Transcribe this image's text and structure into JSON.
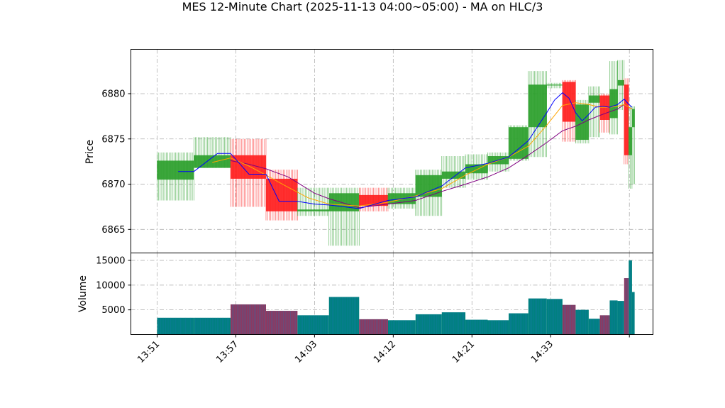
{
  "chart_data": {
    "type": "candlestick",
    "title": "MES 12-Minute Chart (2025-11-13 04:00~05:00) - MA on HLC/3",
    "price_panel": {
      "ylabel": "Price",
      "ylim": [
        6862.4,
        6884.9
      ],
      "yticks": [
        "6865",
        "6870",
        "6875",
        "6880"
      ],
      "grid": true
    },
    "volume_panel": {
      "ylabel": "Volume",
      "ylim": [
        0,
        16500
      ],
      "yticks": [
        "5000",
        "10000",
        "15000"
      ],
      "grid": true
    },
    "x_ticks": [
      {
        "label": "13:51",
        "i": 0
      },
      {
        "label": "13:57",
        "i": 6
      },
      {
        "label": "14:03",
        "i": 12
      },
      {
        "label": "14:12",
        "i": 18
      },
      {
        "label": "14:21",
        "i": 24
      },
      {
        "label": "14:33",
        "i": 30
      },
      {
        "label": "",
        "i": 36
      }
    ],
    "x_range": [
      -2,
      37.8
    ],
    "colors": {
      "up_candle": "#2ca02c",
      "down_candle": "#ff2020",
      "up_volume": "#008080",
      "down_volume": "#8b3a62",
      "ma_fast": "#0000ff",
      "ma_mid": "#ffa500",
      "ma_slow": "#800080",
      "grid": "#b0b0b0"
    },
    "candles": [
      {
        "x": 0.0,
        "w": 2.8,
        "o": 6870.5,
        "h": 6873.5,
        "l": 6868.2,
        "c": 6872.6,
        "v": 3400
      },
      {
        "x": 2.8,
        "w": 2.8,
        "o": 6871.8,
        "h": 6875.2,
        "l": 6871.8,
        "c": 6873.2,
        "v": 3400
      },
      {
        "x": 5.6,
        "w": 2.7,
        "o": 6873.2,
        "h": 6875.0,
        "l": 6867.5,
        "c": 6870.6,
        "v": 6100
      },
      {
        "x": 8.3,
        "w": 2.4,
        "o": 6870.6,
        "h": 6871.6,
        "l": 6866.0,
        "c": 6867.0,
        "v": 4800
      },
      {
        "x": 10.7,
        "w": 2.4,
        "o": 6867.0,
        "h": 6869.6,
        "l": 6866.5,
        "c": 6867.2,
        "v": 3900
      },
      {
        "x": 13.1,
        "w": 2.3,
        "o": 6867.0,
        "h": 6869.6,
        "l": 6863.2,
        "c": 6869.0,
        "v": 7600
      },
      {
        "x": 15.4,
        "w": 2.2,
        "o": 6868.8,
        "h": 6869.6,
        "l": 6867.0,
        "c": 6867.6,
        "v": 3100
      },
      {
        "x": 17.6,
        "w": 2.1,
        "o": 6867.8,
        "h": 6869.6,
        "l": 6867.3,
        "c": 6869.0,
        "v": 2900
      },
      {
        "x": 19.7,
        "w": 2.0,
        "o": 6868.6,
        "h": 6871.6,
        "l": 6866.5,
        "c": 6871.0,
        "v": 4100
      },
      {
        "x": 21.7,
        "w": 1.8,
        "o": 6870.6,
        "h": 6873.1,
        "l": 6869.6,
        "c": 6871.4,
        "v": 4500
      },
      {
        "x": 23.5,
        "w": 1.7,
        "o": 6871.2,
        "h": 6873.3,
        "l": 6870.5,
        "c": 6872.2,
        "v": 3000
      },
      {
        "x": 25.2,
        "w": 1.6,
        "o": 6872.2,
        "h": 6873.5,
        "l": 6871.4,
        "c": 6873.1,
        "v": 2900
      },
      {
        "x": 26.8,
        "w": 1.5,
        "o": 6872.8,
        "h": 6876.5,
        "l": 6872.6,
        "c": 6876.3,
        "v": 4300
      },
      {
        "x": 28.3,
        "w": 1.4,
        "o": 6876.3,
        "h": 6882.5,
        "l": 6873.0,
        "c": 6881.0,
        "v": 7300
      },
      {
        "x": 29.7,
        "w": 1.2,
        "o": 6881.0,
        "h": 6881.2,
        "l": 6880.6,
        "c": 6881.0,
        "v": 7200
      },
      {
        "x": 30.9,
        "w": 1.0,
        "o": 6881.3,
        "h": 6881.5,
        "l": 6874.7,
        "c": 6876.9,
        "v": 6000
      },
      {
        "x": 31.9,
        "w": 1.0,
        "o": 6874.9,
        "h": 6879.3,
        "l": 6874.5,
        "c": 6878.8,
        "v": 5000
      },
      {
        "x": 32.9,
        "w": 0.85,
        "o": 6879.0,
        "h": 6880.8,
        "l": 6875.2,
        "c": 6879.8,
        "v": 3200
      },
      {
        "x": 33.75,
        "w": 0.75,
        "o": 6879.8,
        "h": 6880.0,
        "l": 6875.7,
        "c": 6877.1,
        "v": 3900
      },
      {
        "x": 34.5,
        "w": 0.6,
        "o": 6877.3,
        "h": 6883.6,
        "l": 6875.5,
        "c": 6880.5,
        "v": 6900
      },
      {
        "x": 35.1,
        "w": 0.5,
        "o": 6880.9,
        "h": 6883.7,
        "l": 6878.2,
        "c": 6881.5,
        "v": 6800
      },
      {
        "x": 35.6,
        "w": 0.35,
        "o": 6881.0,
        "h": 6881.7,
        "l": 6872.2,
        "c": 6873.2,
        "v": 11400
      },
      {
        "x": 35.95,
        "w": 0.25,
        "o": 6873.2,
        "h": 6878.6,
        "l": 6869.5,
        "c": 6876.3,
        "v": 15000
      },
      {
        "x": 36.2,
        "w": 0.2,
        "o": 6876.3,
        "h": 6878.6,
        "l": 6870.0,
        "c": 6878.3,
        "v": 8600
      }
    ],
    "ma_fast": [
      [
        1.6,
        6871.4
      ],
      [
        2.8,
        6871.4
      ],
      [
        4.6,
        6873.4
      ],
      [
        5.6,
        6873.4
      ],
      [
        7.0,
        6871.1
      ],
      [
        8.3,
        6871.1
      ],
      [
        9.3,
        6868.1
      ],
      [
        10.7,
        6868.1
      ],
      [
        12.0,
        6867.8
      ],
      [
        13.1,
        6867.7
      ],
      [
        15.4,
        6867.3
      ],
      [
        17.6,
        6868.2
      ],
      [
        19.7,
        6868.6
      ],
      [
        21.7,
        6869.8
      ],
      [
        23.5,
        6871.8
      ],
      [
        25.2,
        6872.3
      ],
      [
        26.8,
        6873.0
      ],
      [
        28.3,
        6874.8
      ],
      [
        29.7,
        6877.9
      ],
      [
        30.3,
        6879.3
      ],
      [
        30.9,
        6880.1
      ],
      [
        31.4,
        6879.5
      ],
      [
        31.9,
        6877.9
      ],
      [
        32.4,
        6877.0
      ],
      [
        32.9,
        6877.7
      ],
      [
        33.4,
        6878.5
      ],
      [
        34.0,
        6878.6
      ],
      [
        34.5,
        6878.5
      ],
      [
        35.1,
        6878.8
      ],
      [
        35.6,
        6879.4
      ],
      [
        35.9,
        6878.9
      ],
      [
        36.2,
        6878.5
      ]
    ],
    "ma_mid": [
      [
        4.2,
        6872.4
      ],
      [
        5.6,
        6872.9
      ],
      [
        7.0,
        6872.0
      ],
      [
        8.3,
        6871.0
      ],
      [
        9.8,
        6869.8
      ],
      [
        11.5,
        6868.5
      ],
      [
        13.1,
        6867.8
      ],
      [
        15.4,
        6867.6
      ],
      [
        17.6,
        6868.0
      ],
      [
        19.7,
        6868.7
      ],
      [
        21.7,
        6869.5
      ],
      [
        23.5,
        6871.0
      ],
      [
        25.2,
        6872.2
      ],
      [
        26.8,
        6873.0
      ],
      [
        28.3,
        6874.2
      ],
      [
        29.7,
        6876.5
      ],
      [
        30.9,
        6878.7
      ],
      [
        31.9,
        6879.0
      ],
      [
        32.9,
        6878.8
      ],
      [
        33.75,
        6878.5
      ],
      [
        34.5,
        6878.5
      ],
      [
        35.1,
        6878.6
      ],
      [
        35.6,
        6878.8
      ],
      [
        36.2,
        6878.3
      ]
    ],
    "ma_slow": [
      [
        5.6,
        6872.6
      ],
      [
        7.0,
        6872.2
      ],
      [
        8.3,
        6871.7
      ],
      [
        10.0,
        6870.8
      ],
      [
        12.0,
        6869.0
      ],
      [
        13.1,
        6868.4
      ],
      [
        15.4,
        6867.4
      ],
      [
        17.6,
        6867.8
      ],
      [
        19.7,
        6868.2
      ],
      [
        21.7,
        6869.2
      ],
      [
        23.5,
        6870.0
      ],
      [
        25.2,
        6870.8
      ],
      [
        26.8,
        6871.8
      ],
      [
        28.3,
        6873.2
      ],
      [
        29.7,
        6874.6
      ],
      [
        30.9,
        6875.9
      ],
      [
        31.9,
        6876.4
      ],
      [
        32.9,
        6877.1
      ],
      [
        33.75,
        6877.6
      ],
      [
        34.5,
        6878.0
      ],
      [
        35.1,
        6878.3
      ],
      [
        35.6,
        6878.8
      ],
      [
        36.2,
        6878.3
      ]
    ]
  }
}
